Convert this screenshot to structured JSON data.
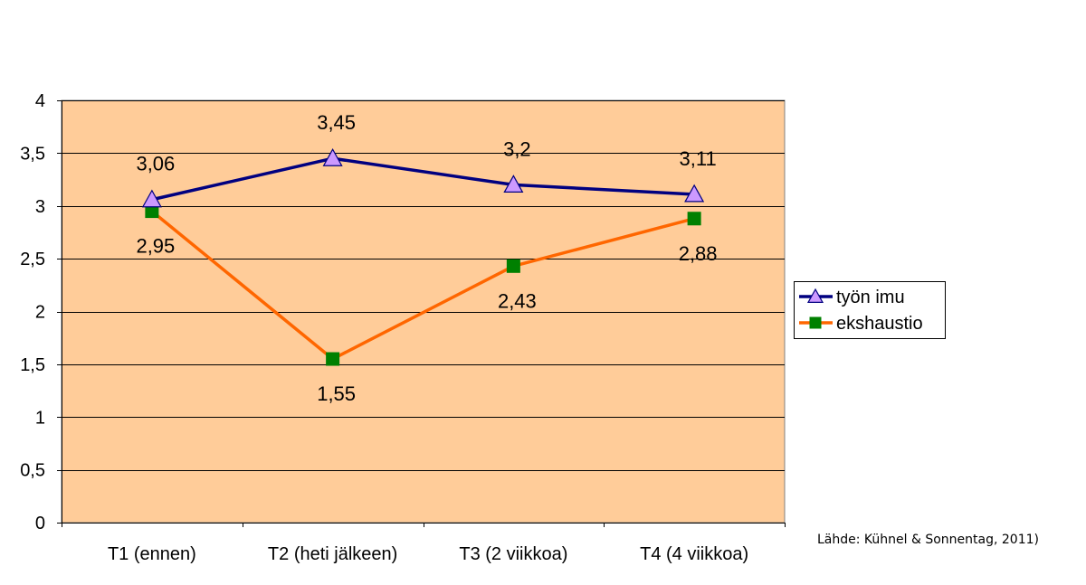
{
  "chart_data": {
    "type": "line",
    "title": "",
    "xlabel": "",
    "ylabel": "",
    "categories": [
      "T1 (ennen)",
      "T2 (heti jälkeen)",
      "T3 (2 viikkoa)",
      "T4 (4 viikkoa)"
    ],
    "ylim": [
      0,
      4
    ],
    "yticks": [
      0,
      0.5,
      1,
      1.5,
      2,
      2.5,
      3,
      3.5,
      4
    ],
    "ytick_labels": [
      "0",
      "0,5",
      "1",
      "1,5",
      "2",
      "2,5",
      "3",
      "3,5",
      "4"
    ],
    "grid": true,
    "legend_position": "right",
    "series": [
      {
        "name": "työn imu",
        "values": [
          3.06,
          3.45,
          3.2,
          3.11
        ],
        "labels": [
          "3,06",
          "3,45",
          "3,2",
          "3,11"
        ],
        "line_color": "#000080",
        "marker": "triangle",
        "marker_color": "#CC99FF",
        "label_position": "above"
      },
      {
        "name": "ekshaustio",
        "values": [
          2.95,
          1.55,
          2.43,
          2.88
        ],
        "labels": [
          "2,95",
          "1,55",
          "2,43",
          "2,88"
        ],
        "line_color": "#FF6600",
        "marker": "square",
        "marker_color": "#008000",
        "label_position": "below"
      }
    ],
    "plot_background": "#FFCC99",
    "gridline_color": "#000000"
  },
  "source_note": "Lähde: Kühnel & Sonnentag, 2011)"
}
